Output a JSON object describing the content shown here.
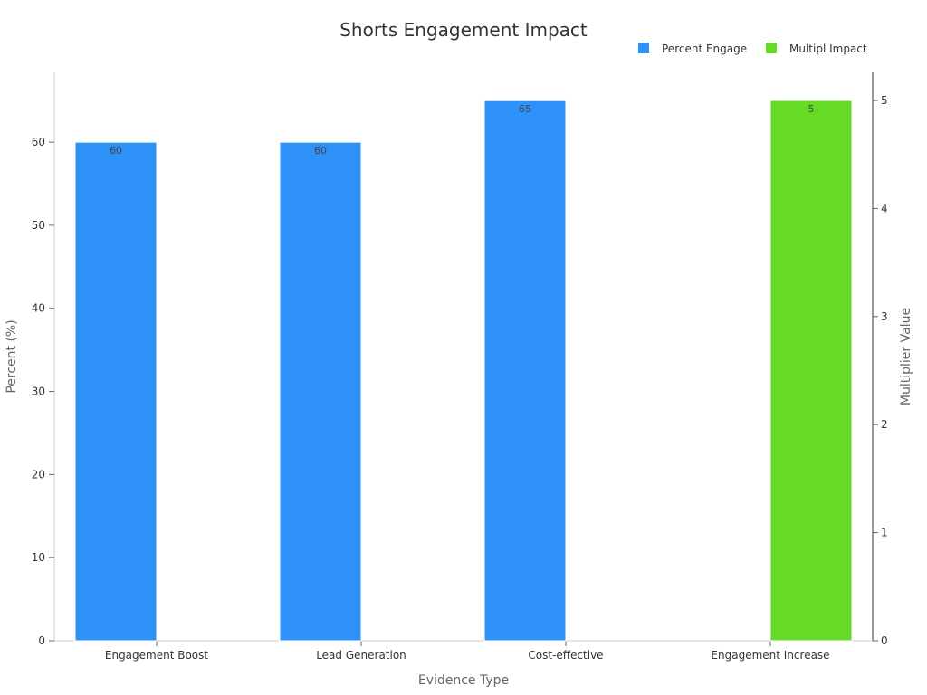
{
  "chart_data": {
    "type": "bar",
    "title": "Shorts Engagement Impact",
    "xlabel": "Evidence Type",
    "ylabel": "Percent (%)",
    "y2label": "Multiplier Value",
    "categories": [
      "Engagement Boost",
      "Lead Generation",
      "Cost-effective",
      "Engagement Increase"
    ],
    "ylim": [
      0,
      68.4
    ],
    "y2lim": [
      0,
      5.26
    ],
    "yticks": [
      0,
      10,
      20,
      30,
      40,
      50,
      60
    ],
    "y2ticks": [
      0,
      1,
      2,
      3,
      4,
      5
    ],
    "grid": false,
    "legend_position": "top-right",
    "series": [
      {
        "name": "Percent Engage",
        "axis": "left",
        "color": "#2E91F8",
        "values": [
          60,
          60,
          65,
          null
        ],
        "labels": [
          "60",
          "60",
          "65",
          ""
        ]
      },
      {
        "name": "Multipl Impact",
        "axis": "right",
        "color": "#66DA26",
        "values": [
          null,
          null,
          null,
          5
        ],
        "labels": [
          "",
          "",
          "",
          "5"
        ]
      }
    ]
  }
}
